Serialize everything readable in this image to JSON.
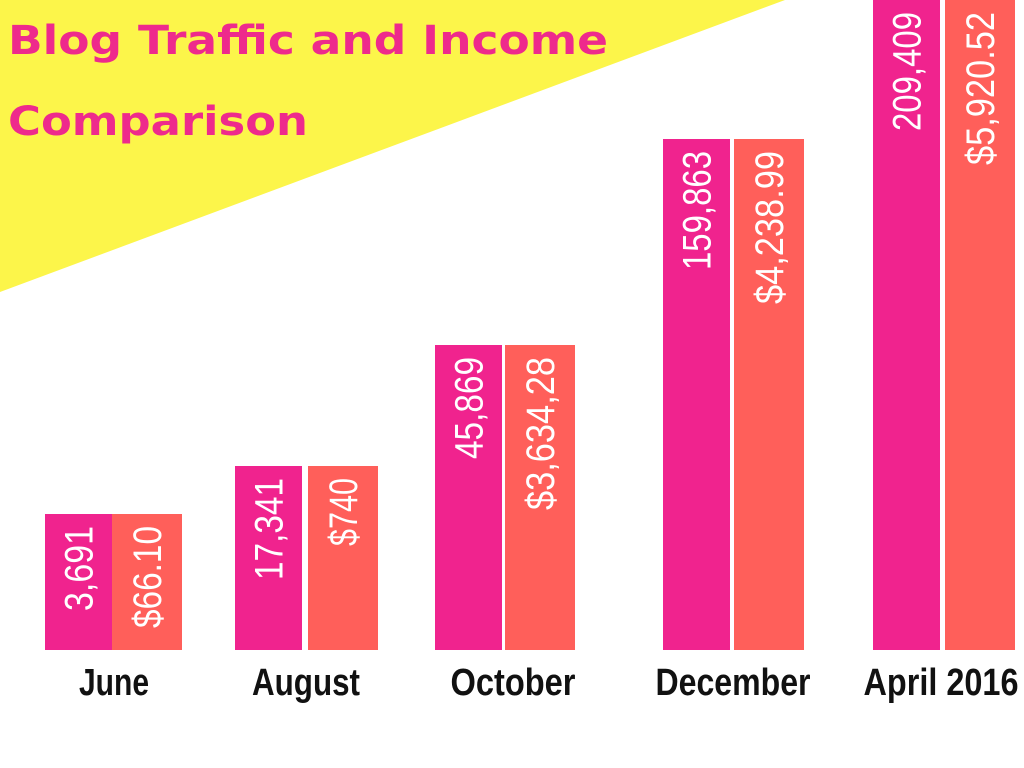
{
  "chart_data": {
    "type": "bar",
    "title": "Blog Traffic and Income Comparison",
    "title_lines": [
      "Blog Traffic and Income",
      "Comparison"
    ],
    "categories": [
      "June",
      "August",
      "October",
      "December",
      "April 2016"
    ],
    "series": [
      {
        "values": [
          3691,
          17341,
          45869,
          159863,
          209409
        ],
        "labels": [
          "3,691",
          "17,341",
          "45,869",
          "159,863",
          "209,409"
        ],
        "color": "#F0238E"
      },
      {
        "values": [
          66.1,
          740,
          3634.28,
          4238.99,
          5920.52
        ],
        "labels": [
          "$66.10",
          "$740",
          "$3,634,28",
          "$4,238.99",
          "$5,920.52"
        ],
        "color": "#FF5F5A"
      }
    ],
    "xlabel": "",
    "ylabel": "",
    "grid": false,
    "legend": "none",
    "background_accent": "#FCF54A"
  }
}
